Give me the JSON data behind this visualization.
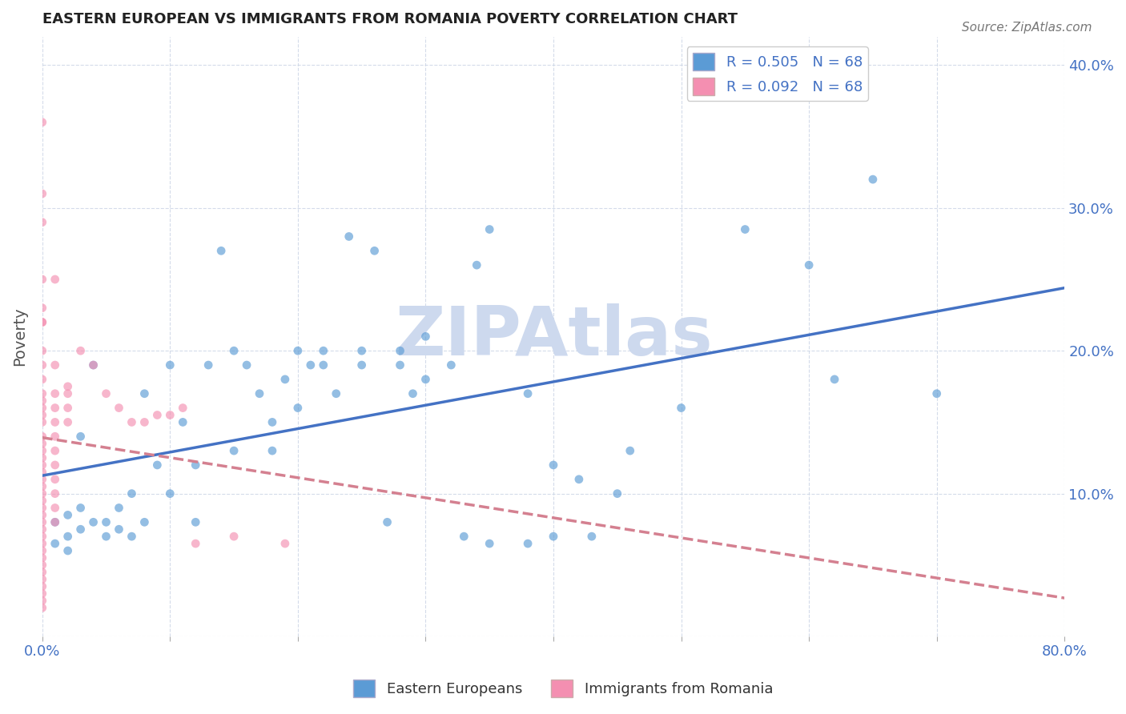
{
  "title": "EASTERN EUROPEAN VS IMMIGRANTS FROM ROMANIA POVERTY CORRELATION CHART",
  "source": "Source: ZipAtlas.com",
  "ylabel": "Poverty",
  "right_yticks": [
    "10.0%",
    "20.0%",
    "30.0%",
    "40.0%"
  ],
  "right_ytick_vals": [
    0.1,
    0.2,
    0.3,
    0.4
  ],
  "xlim": [
    0.0,
    0.8
  ],
  "ylim": [
    0.0,
    0.42
  ],
  "legend_label_blue": "Eastern Europeans",
  "legend_label_pink": "Immigrants from Romania",
  "legend_R_blue": "R = 0.505",
  "legend_N_blue": "N = 68",
  "legend_R_pink": "R = 0.092",
  "legend_N_pink": "N = 68",
  "watermark": "ZIPAtlas",
  "watermark_color": "#cdd9ee",
  "blue_color": "#5b9bd5",
  "pink_color": "#f48fb1",
  "blue_line_color": "#4472c4",
  "pink_line_color": "#d48090",
  "grid_color": "#d0d8e8",
  "R_blue": 0.505,
  "R_pink": 0.092,
  "N": 68,
  "blue_scatter": [
    [
      0.02,
      0.085
    ],
    [
      0.03,
      0.14
    ],
    [
      0.04,
      0.19
    ],
    [
      0.05,
      0.08
    ],
    [
      0.06,
      0.09
    ],
    [
      0.07,
      0.1
    ],
    [
      0.08,
      0.17
    ],
    [
      0.09,
      0.12
    ],
    [
      0.1,
      0.19
    ],
    [
      0.11,
      0.15
    ],
    [
      0.12,
      0.08
    ],
    [
      0.13,
      0.19
    ],
    [
      0.14,
      0.27
    ],
    [
      0.15,
      0.2
    ],
    [
      0.16,
      0.19
    ],
    [
      0.17,
      0.17
    ],
    [
      0.18,
      0.15
    ],
    [
      0.19,
      0.18
    ],
    [
      0.2,
      0.16
    ],
    [
      0.21,
      0.19
    ],
    [
      0.22,
      0.2
    ],
    [
      0.23,
      0.17
    ],
    [
      0.24,
      0.28
    ],
    [
      0.25,
      0.19
    ],
    [
      0.26,
      0.27
    ],
    [
      0.27,
      0.08
    ],
    [
      0.28,
      0.19
    ],
    [
      0.29,
      0.17
    ],
    [
      0.3,
      0.18
    ],
    [
      0.32,
      0.19
    ],
    [
      0.33,
      0.07
    ],
    [
      0.34,
      0.26
    ],
    [
      0.35,
      0.285
    ],
    [
      0.38,
      0.17
    ],
    [
      0.4,
      0.12
    ],
    [
      0.42,
      0.11
    ],
    [
      0.45,
      0.1
    ],
    [
      0.46,
      0.13
    ],
    [
      0.5,
      0.16
    ],
    [
      0.55,
      0.285
    ],
    [
      0.6,
      0.26
    ],
    [
      0.62,
      0.18
    ],
    [
      0.65,
      0.32
    ],
    [
      0.7,
      0.17
    ],
    [
      0.01,
      0.065
    ],
    [
      0.01,
      0.08
    ],
    [
      0.02,
      0.07
    ],
    [
      0.02,
      0.06
    ],
    [
      0.03,
      0.075
    ],
    [
      0.03,
      0.09
    ],
    [
      0.04,
      0.08
    ],
    [
      0.05,
      0.07
    ],
    [
      0.06,
      0.075
    ],
    [
      0.07,
      0.07
    ],
    [
      0.08,
      0.08
    ],
    [
      0.1,
      0.1
    ],
    [
      0.12,
      0.12
    ],
    [
      0.15,
      0.13
    ],
    [
      0.18,
      0.13
    ],
    [
      0.2,
      0.2
    ],
    [
      0.22,
      0.19
    ],
    [
      0.25,
      0.2
    ],
    [
      0.28,
      0.2
    ],
    [
      0.3,
      0.21
    ],
    [
      0.35,
      0.065
    ],
    [
      0.38,
      0.065
    ],
    [
      0.4,
      0.07
    ],
    [
      0.43,
      0.07
    ]
  ],
  "pink_scatter": [
    [
      0.0,
      0.36
    ],
    [
      0.0,
      0.31
    ],
    [
      0.0,
      0.29
    ],
    [
      0.0,
      0.25
    ],
    [
      0.0,
      0.23
    ],
    [
      0.0,
      0.22
    ],
    [
      0.0,
      0.22
    ],
    [
      0.0,
      0.2
    ],
    [
      0.0,
      0.19
    ],
    [
      0.0,
      0.18
    ],
    [
      0.0,
      0.17
    ],
    [
      0.0,
      0.165
    ],
    [
      0.0,
      0.16
    ],
    [
      0.0,
      0.155
    ],
    [
      0.0,
      0.15
    ],
    [
      0.0,
      0.14
    ],
    [
      0.0,
      0.135
    ],
    [
      0.0,
      0.13
    ],
    [
      0.0,
      0.125
    ],
    [
      0.0,
      0.12
    ],
    [
      0.0,
      0.115
    ],
    [
      0.0,
      0.11
    ],
    [
      0.0,
      0.105
    ],
    [
      0.0,
      0.1
    ],
    [
      0.0,
      0.095
    ],
    [
      0.0,
      0.09
    ],
    [
      0.0,
      0.085
    ],
    [
      0.0,
      0.08
    ],
    [
      0.0,
      0.075
    ],
    [
      0.0,
      0.07
    ],
    [
      0.0,
      0.065
    ],
    [
      0.0,
      0.06
    ],
    [
      0.0,
      0.055
    ],
    [
      0.0,
      0.05
    ],
    [
      0.0,
      0.045
    ],
    [
      0.0,
      0.04
    ],
    [
      0.0,
      0.035
    ],
    [
      0.0,
      0.03
    ],
    [
      0.0,
      0.025
    ],
    [
      0.0,
      0.02
    ],
    [
      0.01,
      0.25
    ],
    [
      0.01,
      0.19
    ],
    [
      0.01,
      0.17
    ],
    [
      0.01,
      0.16
    ],
    [
      0.01,
      0.15
    ],
    [
      0.01,
      0.14
    ],
    [
      0.01,
      0.13
    ],
    [
      0.01,
      0.12
    ],
    [
      0.01,
      0.11
    ],
    [
      0.01,
      0.1
    ],
    [
      0.01,
      0.09
    ],
    [
      0.01,
      0.08
    ],
    [
      0.02,
      0.175
    ],
    [
      0.02,
      0.17
    ],
    [
      0.02,
      0.16
    ],
    [
      0.02,
      0.15
    ],
    [
      0.03,
      0.2
    ],
    [
      0.04,
      0.19
    ],
    [
      0.05,
      0.17
    ],
    [
      0.06,
      0.16
    ],
    [
      0.07,
      0.15
    ],
    [
      0.08,
      0.15
    ],
    [
      0.09,
      0.155
    ],
    [
      0.1,
      0.155
    ],
    [
      0.11,
      0.16
    ],
    [
      0.12,
      0.065
    ],
    [
      0.15,
      0.07
    ],
    [
      0.19,
      0.065
    ]
  ]
}
